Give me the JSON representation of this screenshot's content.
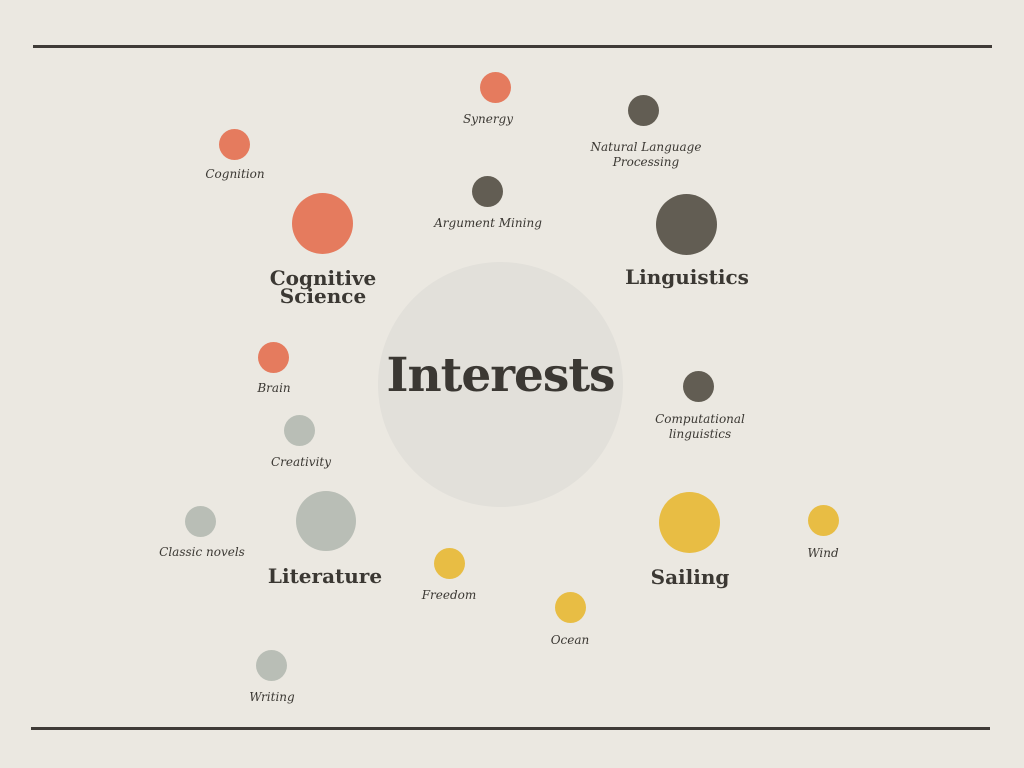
{
  "title": "Interests",
  "colors": {
    "background": "#ebe8e1",
    "center": "#e2e0da",
    "cognitive_science": "#e57b5e",
    "linguistics": "#625d53",
    "literature": "#b9beb6",
    "sailing": "#e8bd44",
    "text": "#3b3833"
  },
  "groups": {
    "cognitive_science": {
      "label_line1": "Cognitive",
      "label_line2": "Science",
      "items": [
        "Cognition",
        "Synergy",
        "Brain"
      ]
    },
    "linguistics": {
      "label": "Linguistics",
      "items": [
        "Natural Language",
        "Processing",
        "Argument Mining",
        "Computational",
        "linguistics"
      ]
    },
    "literature": {
      "label": "Literature",
      "items": [
        "Creativity",
        "Classic novels",
        "Writing"
      ]
    },
    "sailing": {
      "label": "Sailing",
      "items": [
        "Freedom",
        "Ocean",
        "Wind"
      ]
    }
  }
}
